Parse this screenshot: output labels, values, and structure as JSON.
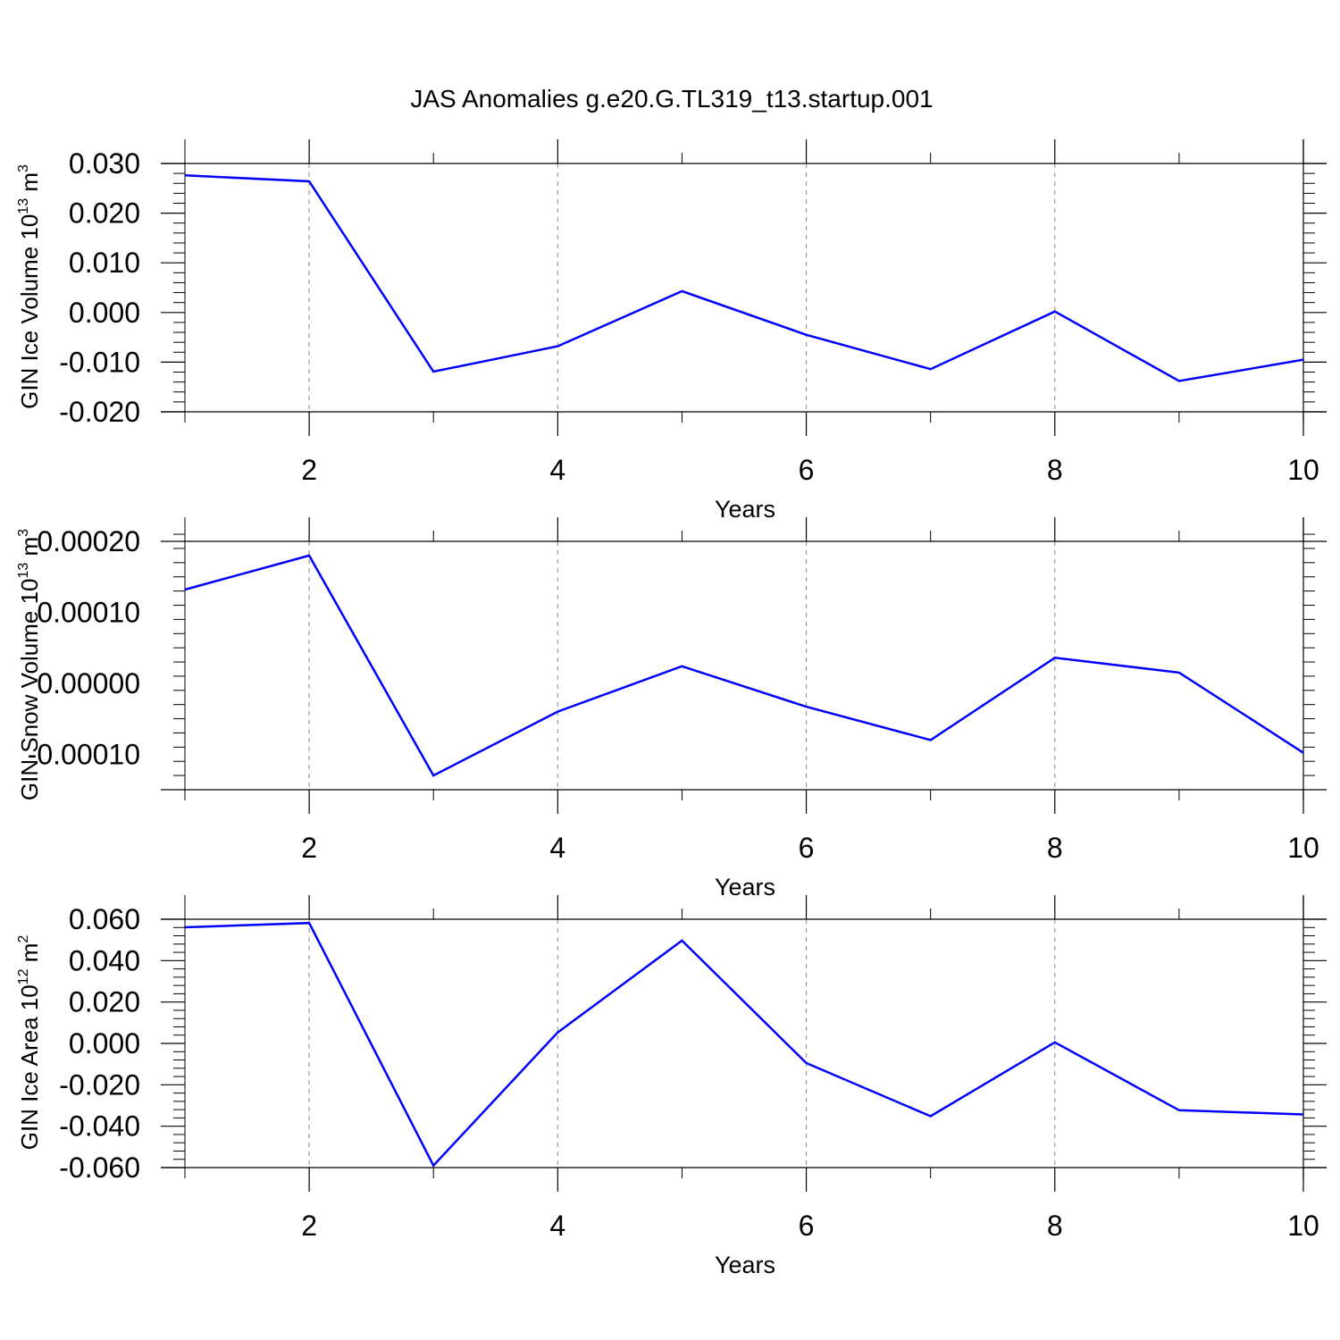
{
  "title": "JAS Anomalies g.e20.G.TL319_t13.startup.001",
  "colors": {
    "series": "#0000ff",
    "axis": "#000000",
    "grid": "#999999"
  },
  "chart_data": [
    {
      "type": "line",
      "ylabel": {
        "text": "GIN Ice Volume 10",
        "sup": "13",
        "unit": " m",
        "unit_sup": "3"
      },
      "xlabel": "Years",
      "xlim": [
        1,
        10
      ],
      "ylim": [
        -0.02,
        0.03
      ],
      "grid": "vertical dashed at major x ticks",
      "xticks": [
        2,
        4,
        6,
        8,
        10
      ],
      "xtick_labels": [
        "2",
        "4",
        "6",
        "8",
        "10"
      ],
      "yticks": [
        -0.02,
        -0.01,
        0.0,
        0.01,
        0.02,
        0.03
      ],
      "ytick_labels": [
        "-0.020",
        "-0.010",
        "0.000",
        "0.010",
        "0.020",
        "0.030"
      ],
      "x": [
        1,
        2,
        3,
        4,
        5,
        6,
        7,
        8,
        9,
        10
      ],
      "series": [
        {
          "values": [
            0.0276,
            0.0264,
            -0.0119,
            -0.0068,
            0.0043,
            -0.0045,
            -0.0114,
            0.0002,
            -0.0138,
            -0.0095
          ]
        }
      ]
    },
    {
      "type": "line",
      "ylabel": {
        "text": "GIN Snow Volume 10",
        "sup": "13",
        "unit": " m",
        "unit_sup": "3"
      },
      "xlabel": "Years",
      "xlim": [
        1,
        10
      ],
      "ylim": [
        -0.00015,
        0.0002
      ],
      "grid": "vertical dashed at major x ticks",
      "xticks": [
        2,
        4,
        6,
        8,
        10
      ],
      "xtick_labels": [
        "2",
        "4",
        "6",
        "8",
        "10"
      ],
      "yticks": [
        -0.0001,
        0.0,
        0.0001,
        0.0002
      ],
      "ytick_labels": [
        "-0.00010",
        "0.00000",
        "0.00010",
        "0.00020"
      ],
      "x": [
        1,
        2,
        3,
        4,
        5,
        6,
        7,
        8,
        9,
        10
      ],
      "series": [
        {
          "values": [
            0.000132,
            0.00018,
            -0.00013,
            -4e-05,
            2.4e-05,
            -3.3e-05,
            -8e-05,
            3.6e-05,
            1.5e-05,
            -9.8e-05
          ]
        }
      ]
    },
    {
      "type": "line",
      "ylabel": {
        "text": "GIN Ice Area 10",
        "sup": "12",
        "unit": " m",
        "unit_sup": "2"
      },
      "xlabel": "Years",
      "xlim": [
        1,
        10
      ],
      "ylim": [
        -0.06,
        0.06
      ],
      "grid": "vertical dashed at major x ticks",
      "xticks": [
        2,
        4,
        6,
        8,
        10
      ],
      "xtick_labels": [
        "2",
        "4",
        "6",
        "8",
        "10"
      ],
      "yticks": [
        -0.06,
        -0.04,
        -0.02,
        0.0,
        0.02,
        0.04,
        0.06
      ],
      "ytick_labels": [
        "-0.060",
        "-0.040",
        "-0.020",
        "0.000",
        "0.020",
        "0.040",
        "0.060"
      ],
      "x": [
        1,
        2,
        3,
        4,
        5,
        6,
        7,
        8,
        9,
        10
      ],
      "series": [
        {
          "values": [
            0.0561,
            0.0582,
            -0.059,
            0.0053,
            0.0497,
            -0.0095,
            -0.0352,
            0.0005,
            -0.0323,
            -0.0343
          ]
        }
      ]
    }
  ]
}
